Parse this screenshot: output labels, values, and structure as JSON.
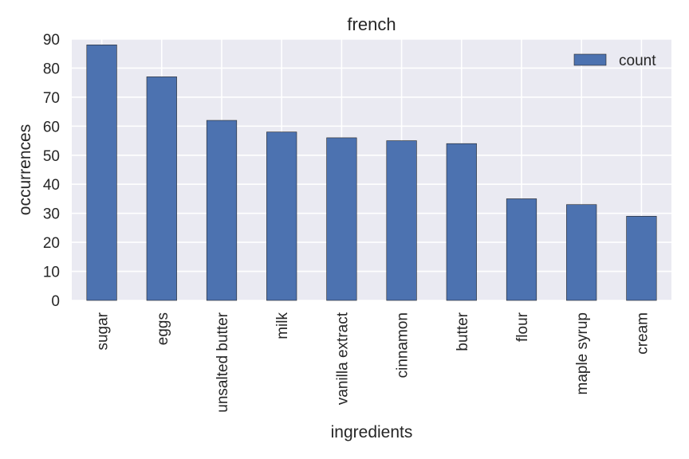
{
  "chart_data": {
    "type": "bar",
    "title": "french",
    "xlabel": "ingredients",
    "ylabel": "occurrences",
    "categories": [
      "sugar",
      "eggs",
      "unsalted butter",
      "milk",
      "vanilla extract",
      "cinnamon",
      "butter",
      "flour",
      "maple syrup",
      "cream"
    ],
    "series": [
      {
        "name": "count",
        "values": [
          88,
          77,
          62,
          58,
          56,
          55,
          54,
          35,
          33,
          29
        ]
      }
    ],
    "ylim": [
      0,
      90
    ],
    "yticks": [
      0,
      10,
      20,
      30,
      40,
      50,
      60,
      70,
      80,
      90
    ],
    "grid": true,
    "legend_position": "top-right",
    "colors": {
      "bar": "#4c72b0",
      "plot_background": "#eaeaf2",
      "grid": "#ffffff"
    }
  }
}
